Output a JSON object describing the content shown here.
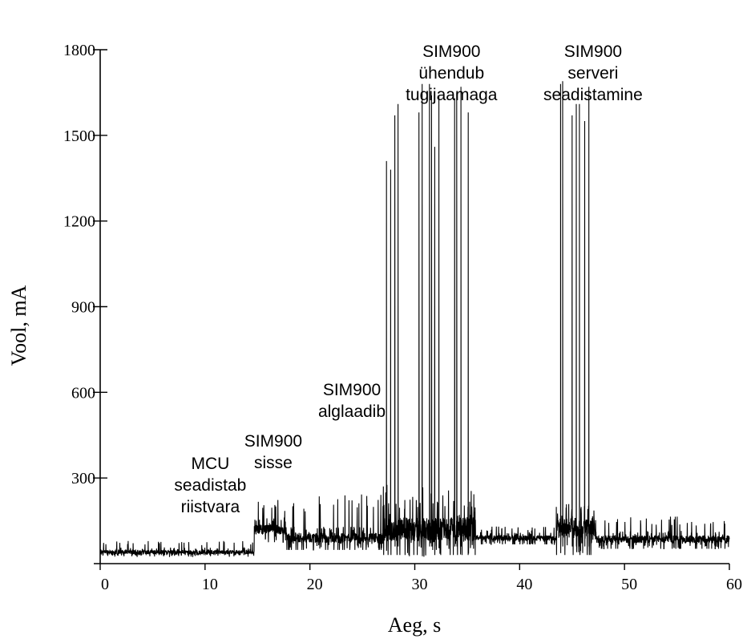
{
  "chart_data": {
    "type": "line",
    "title": "",
    "xlabel": "Aeg, s",
    "ylabel": "Vool, mA",
    "xlim": [
      0,
      60
    ],
    "ylim": [
      0,
      1800
    ],
    "x_ticks": [
      "0",
      "10",
      "20",
      "30",
      "40",
      "50",
      "60"
    ],
    "y_ticks": [
      "300",
      "600",
      "900",
      "1200",
      "1500",
      "1800"
    ],
    "grid": false,
    "annotations": [
      {
        "lines": [
          "MCU",
          "seadistab",
          "riistvara"
        ],
        "x": 10.5,
        "y": 332
      },
      {
        "lines": [
          "SIM900",
          "sisse"
        ],
        "x": 16.5,
        "y": 410
      },
      {
        "lines": [
          "SIM900",
          "alglaadib"
        ],
        "x": 24.0,
        "y": 590
      },
      {
        "lines": [
          "SIM900",
          "ühendub",
          "tugijaamaga"
        ],
        "x": 33.5,
        "y": 1775
      },
      {
        "lines": [
          "SIM900",
          "serveri",
          "seadistamine"
        ],
        "x": 47.0,
        "y": 1775
      }
    ],
    "series": [
      {
        "segments": [
          {
            "x_start": 0,
            "x_end": 14.7,
            "base": 40,
            "noise": 12,
            "max": 80
          },
          {
            "x_start": 14.7,
            "x_end": 17.8,
            "base": 120,
            "noise": 30,
            "max": 225
          },
          {
            "x_start": 17.8,
            "x_end": 27.0,
            "base": 90,
            "noise": 28,
            "max": 245
          },
          {
            "x_start": 27.0,
            "x_end": 35.8,
            "base": 120,
            "noise": 70,
            "max": 280
          },
          {
            "x_start": 35.8,
            "x_end": 43.5,
            "base": 90,
            "noise": 15,
            "max": 130
          },
          {
            "x_start": 43.5,
            "x_end": 47.3,
            "base": 120,
            "noise": 65,
            "max": 210
          },
          {
            "x_start": 47.3,
            "x_end": 60,
            "base": 85,
            "noise": 22,
            "max": 165
          }
        ],
        "peaks": [
          {
            "x": 27.3,
            "y": 1410
          },
          {
            "x": 27.7,
            "y": 1380
          },
          {
            "x": 28.1,
            "y": 1570
          },
          {
            "x": 28.4,
            "y": 1610
          },
          {
            "x": 30.4,
            "y": 1580
          },
          {
            "x": 30.7,
            "y": 1680
          },
          {
            "x": 31.4,
            "y": 1680
          },
          {
            "x": 31.6,
            "y": 1640
          },
          {
            "x": 31.9,
            "y": 1460
          },
          {
            "x": 32.3,
            "y": 1640
          },
          {
            "x": 33.8,
            "y": 1630
          },
          {
            "x": 34.0,
            "y": 1650
          },
          {
            "x": 34.4,
            "y": 1670
          },
          {
            "x": 35.1,
            "y": 1580
          },
          {
            "x": 43.9,
            "y": 1680
          },
          {
            "x": 44.1,
            "y": 1690
          },
          {
            "x": 45.0,
            "y": 1570
          },
          {
            "x": 45.4,
            "y": 1610
          },
          {
            "x": 45.7,
            "y": 1610
          },
          {
            "x": 46.2,
            "y": 1550
          },
          {
            "x": 46.6,
            "y": 1670
          }
        ]
      }
    ]
  }
}
